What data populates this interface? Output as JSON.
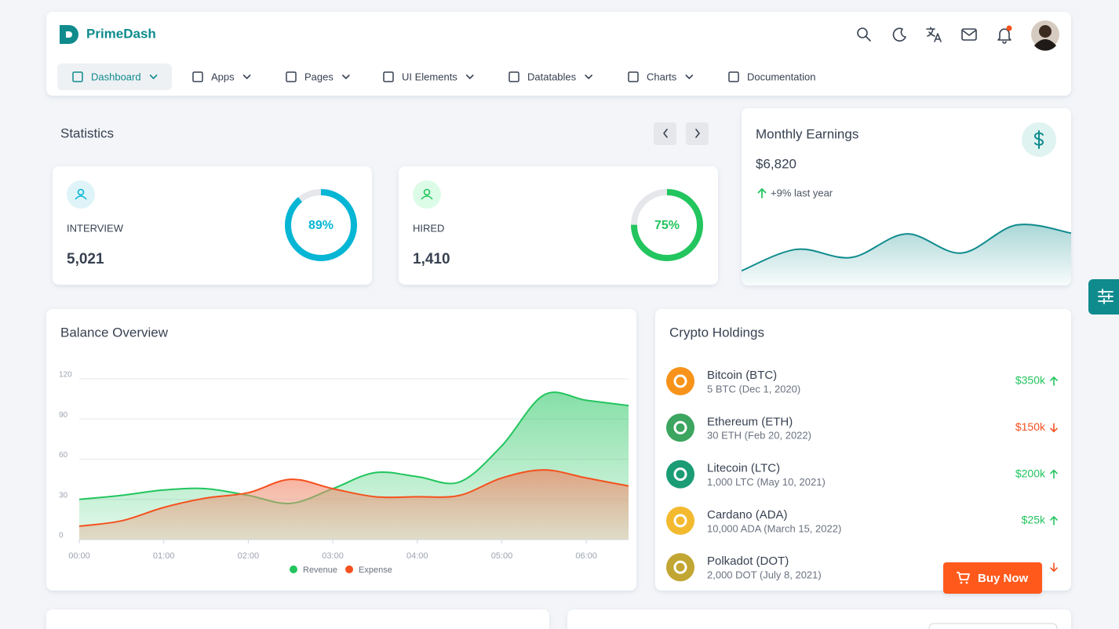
{
  "brand": "PrimeDash",
  "nav": [
    {
      "label": "Dashboard",
      "active": true,
      "dropdown": true
    },
    {
      "label": "Apps",
      "active": false,
      "dropdown": true
    },
    {
      "label": "Pages",
      "active": false,
      "dropdown": true
    },
    {
      "label": "UI Elements",
      "active": false,
      "dropdown": true
    },
    {
      "label": "Datatables",
      "active": false,
      "dropdown": true
    },
    {
      "label": "Charts",
      "active": false,
      "dropdown": true
    },
    {
      "label": "Documentation",
      "active": false,
      "dropdown": false
    }
  ],
  "statistics": {
    "title": "Statistics",
    "cards": [
      {
        "label": "INTERVIEW",
        "value": "5,021",
        "progress": {
          "value": 89,
          "label": "89%"
        },
        "color": "#06b6d4",
        "tint": "#dff4f8"
      },
      {
        "label": "HIRED",
        "value": "1,410",
        "progress": {
          "value": 75,
          "label": "75%"
        },
        "color": "#22c55e",
        "tint": "#dcfce7"
      }
    ]
  },
  "earnings": {
    "title": "Monthly Earnings",
    "amount": "$6,820",
    "change": "+9% last year",
    "sparkline": [
      20,
      49,
      38,
      70,
      44,
      82,
      71
    ]
  },
  "balance": {
    "title": "Balance Overview",
    "chart_data": {
      "type": "area",
      "x": [
        0,
        0.5,
        1,
        1.5,
        2,
        2.5,
        3,
        3.5,
        4,
        4.5,
        5,
        5.5,
        6,
        6.5
      ],
      "xlim": [
        0,
        6.5
      ],
      "xticks": [
        {
          "value": 0,
          "label": "00:00"
        },
        {
          "value": 1,
          "label": "01:00"
        },
        {
          "value": 2,
          "label": "02:00"
        },
        {
          "value": 3,
          "label": "03:00"
        },
        {
          "value": 4,
          "label": "04:00"
        },
        {
          "value": 5,
          "label": "05:00"
        },
        {
          "value": 6,
          "label": "06:00"
        }
      ],
      "ylim": [
        0,
        120
      ],
      "yticks": [
        0,
        30,
        60,
        90,
        120
      ],
      "grid": true,
      "series": [
        {
          "name": "Revenue",
          "color": "#22c55e",
          "values": [
            30,
            33,
            37,
            38,
            33,
            27,
            38,
            50,
            47,
            43,
            70,
            108,
            104,
            100
          ]
        },
        {
          "name": "Expense",
          "color": "#f4511e",
          "values": [
            10,
            14,
            24,
            31,
            35,
            45,
            38,
            32,
            32,
            33,
            46,
            52,
            46,
            40
          ]
        }
      ]
    }
  },
  "crypto": {
    "title": "Crypto Holdings",
    "items": [
      {
        "name": "Bitcoin (BTC)",
        "detail": "5 BTC (Dec 1, 2020)",
        "amount": "$350k",
        "trend": "up",
        "color": "#f7931a"
      },
      {
        "name": "Ethereum (ETH)",
        "detail": "30 ETH (Feb 20, 2022)",
        "amount": "$150k",
        "trend": "down",
        "color": "#3ca560"
      },
      {
        "name": "Litecoin (LTC)",
        "detail": "1,000 LTC (May 10, 2021)",
        "amount": "$200k",
        "trend": "up",
        "color": "#1a9c74"
      },
      {
        "name": "Cardano (ADA)",
        "detail": "10,000 ADA (March 15, 2022)",
        "amount": "$25k",
        "trend": "up",
        "color": "#f3ba2f"
      },
      {
        "name": "Polkadot (DOT)",
        "detail": "2,000 DOT (July 8, 2021)",
        "trend": "down",
        "color": "#c2a633"
      }
    ]
  },
  "buy_button": "Buy Now"
}
